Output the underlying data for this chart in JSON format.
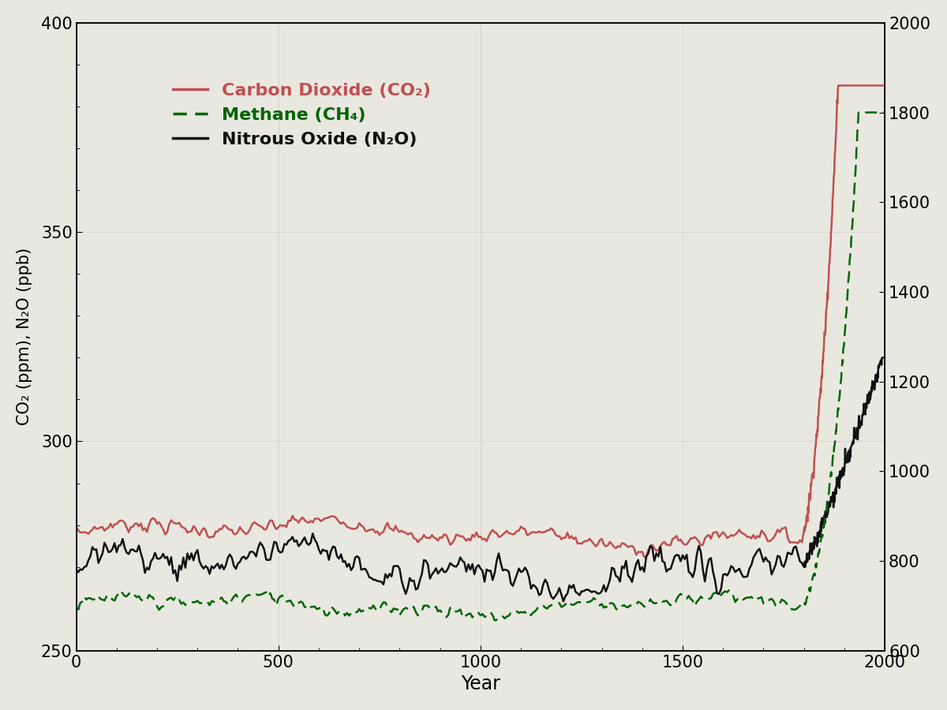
{
  "title": "",
  "xlabel": "Year",
  "ylabel_left": "CO₂ (ppm), N₂O (ppb)",
  "ylabel_right": "",
  "xlim": [
    0,
    2000
  ],
  "ylim_left": [
    250,
    400
  ],
  "ylim_right": [
    600,
    2000
  ],
  "yticks_left": [
    250,
    300,
    350,
    400
  ],
  "yticks_right": [
    600,
    800,
    1000,
    1200,
    1400,
    1600,
    1800,
    2000
  ],
  "xticks": [
    0,
    500,
    1000,
    1500,
    2000
  ],
  "legend_labels": [
    "Carbon Dioxide (CO₂)",
    "Methane (CH₄)",
    "Nitrous Oxide (N₂O)"
  ],
  "co2_color": "#8B1A1A",
  "co2_line_color": "#C05050",
  "ch4_color": "#006400",
  "n2o_color": "#111111",
  "background_color": "#d8d8d0",
  "plot_bg_color": "#e8e8e0",
  "fontsize": 15,
  "tick_fontsize": 15,
  "label_fontsize": 15,
  "legend_fontsize": 16
}
